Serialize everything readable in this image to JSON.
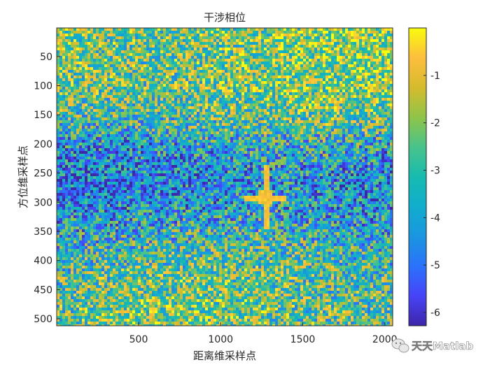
{
  "chart_data": {
    "type": "heatmap",
    "title": "干涉相位",
    "xlabel": "距离维采样点",
    "ylabel": "方位维采样点",
    "xlim": [
      1,
      2048
    ],
    "ylim": [
      1,
      512
    ],
    "y_reversed": true,
    "x_ticks": [
      500,
      1000,
      1500,
      2000
    ],
    "y_ticks": [
      50,
      100,
      150,
      200,
      250,
      300,
      350,
      400,
      450,
      500
    ],
    "colorbar": {
      "colormap": "parula",
      "range": [
        -6.28,
        0
      ],
      "ticks": [
        -1,
        -2,
        -3,
        -4,
        -5,
        -6
      ]
    },
    "features": [
      {
        "kind": "bright-cross",
        "x": 1270,
        "y": 290
      }
    ]
  },
  "watermark": {
    "text": "天天Matlab",
    "icon": "wechat-icon"
  }
}
